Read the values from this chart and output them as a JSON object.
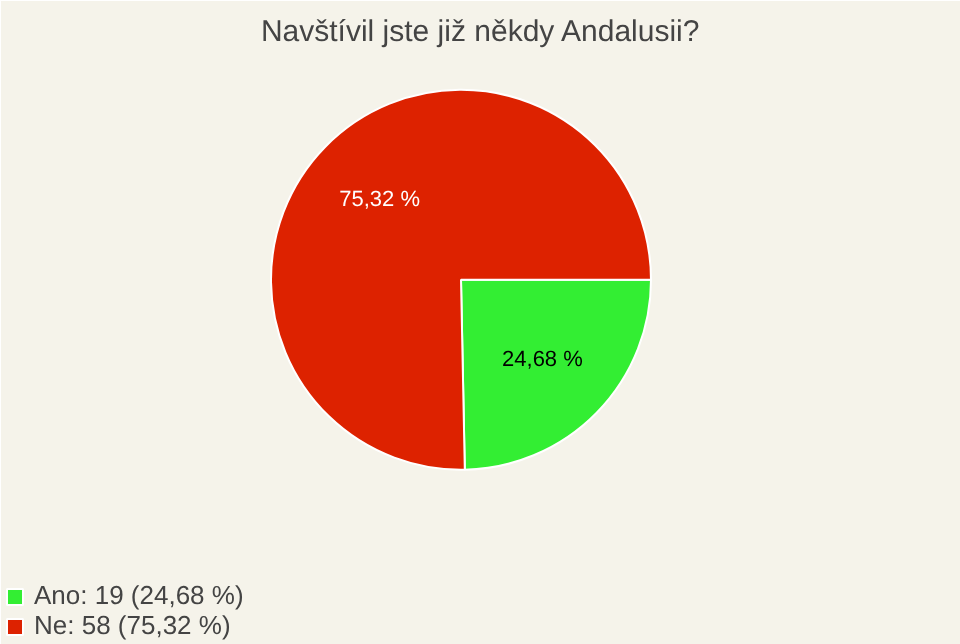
{
  "chart_data": {
    "type": "pie",
    "title": "Navštívil jste již někdy Andalusii?",
    "categories": [
      "Ano: 19 (24,68 %)",
      "Ne: 58 (75,32 %)"
    ],
    "values": [
      24.68,
      75.32
    ],
    "colors": [
      "#33ee33",
      "#dd2200"
    ],
    "value_labels": [
      "24,68 %",
      "75,32 %"
    ],
    "legend": "bottom left"
  }
}
